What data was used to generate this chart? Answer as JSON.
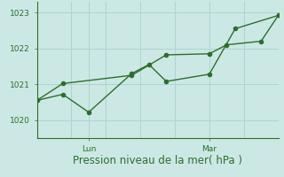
{
  "xlabel": "Pression niveau de la mer( hPa )",
  "bg_color": "#cce8e4",
  "line_color": "#2d6e2d",
  "grid_color": "#aed4d0",
  "axis_color": "#2d6e2d",
  "ylim": [
    1019.5,
    1023.3
  ],
  "yticks": [
    1020,
    1021,
    1022,
    1023
  ],
  "xlim": [
    0,
    14
  ],
  "x_lun": 3.0,
  "x_mar": 10.0,
  "series1_x": [
    0,
    1.5,
    3.0,
    5.5,
    6.5,
    7.5,
    10.0,
    11.5,
    14.0
  ],
  "series1_y": [
    1020.55,
    1020.72,
    1020.22,
    1021.3,
    1021.55,
    1021.08,
    1021.28,
    1022.55,
    1022.92
  ],
  "series2_x": [
    0,
    1.5,
    5.5,
    7.5,
    10.0,
    11.0,
    13.0,
    14.0
  ],
  "series2_y": [
    1020.55,
    1021.02,
    1021.25,
    1021.82,
    1021.85,
    1022.1,
    1022.2,
    1022.92
  ],
  "marker_size": 3.0,
  "line_width": 1.0,
  "tick_font_size": 6.5,
  "xlabel_font_size": 8.5
}
